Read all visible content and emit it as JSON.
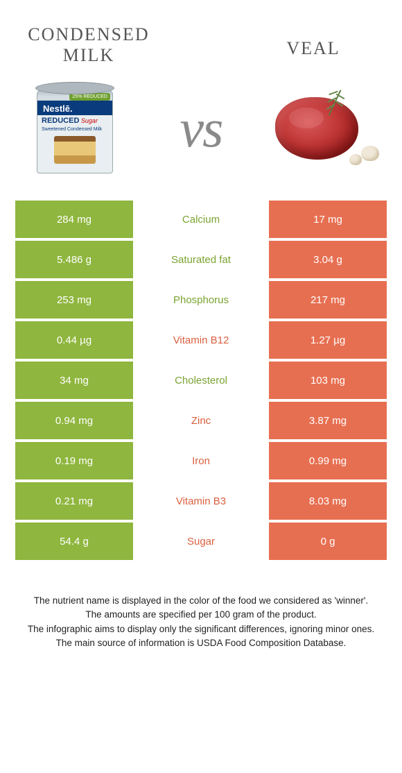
{
  "colors": {
    "left": "#8fb63e",
    "right": "#e76f51",
    "left_text": "#7aa332",
    "right_text": "#d9603f"
  },
  "titles": {
    "left": "CONDENSED MILK",
    "right": "VEAL",
    "vs": "vs"
  },
  "rows": [
    {
      "left": "284 mg",
      "label": "Calcium",
      "right": "17 mg",
      "winner": "left"
    },
    {
      "left": "5.486 g",
      "label": "Saturated fat",
      "right": "3.04 g",
      "winner": "left"
    },
    {
      "left": "253 mg",
      "label": "Phosphorus",
      "right": "217 mg",
      "winner": "left"
    },
    {
      "left": "0.44 µg",
      "label": "Vitamin B12",
      "right": "1.27 µg",
      "winner": "right"
    },
    {
      "left": "34 mg",
      "label": "Cholesterol",
      "right": "103 mg",
      "winner": "left"
    },
    {
      "left": "0.94 mg",
      "label": "Zinc",
      "right": "3.87 mg",
      "winner": "right"
    },
    {
      "left": "0.19 mg",
      "label": "Iron",
      "right": "0.99 mg",
      "winner": "right"
    },
    {
      "left": "0.21 mg",
      "label": "Vitamin B3",
      "right": "8.03 mg",
      "winner": "right"
    },
    {
      "left": "54.4 g",
      "label": "Sugar",
      "right": "0 g",
      "winner": "right"
    }
  ],
  "footer": {
    "line1": "The nutrient name is displayed in the color of the food we considered as 'winner'.",
    "line2": "The amounts are specified per 100 gram of the product.",
    "line3": "The infographic aims to display only the significant differences, ignoring minor ones.",
    "line4": "The main source of information is USDA Food Composition Database."
  },
  "can_labels": {
    "brand": "Nestlē.",
    "badge": "25% REDUCED",
    "reduced": "REDUCED",
    "sub": "Sugar",
    "desc": "Sweetened Condensed Milk"
  }
}
